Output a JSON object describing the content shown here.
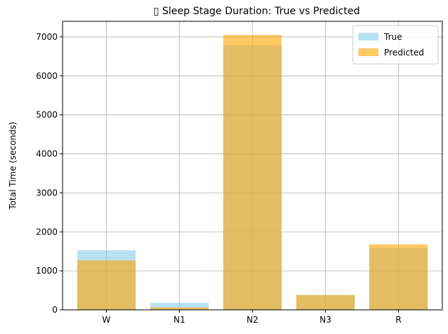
{
  "chart_data": {
    "type": "bar",
    "title": "▯ Sleep Stage Duration: True vs Predicted",
    "xlabel": "",
    "ylabel": "Total Time (seconds)",
    "categories": [
      "W",
      "N1",
      "N2",
      "N3",
      "R"
    ],
    "series": [
      {
        "name": "True",
        "values": [
          1530,
          180,
          6780,
          380,
          1590
        ],
        "color": "#87ceeb",
        "alpha": 0.6
      },
      {
        "name": "Predicted",
        "values": [
          1270,
          60,
          7050,
          380,
          1680
        ],
        "color": "#ffa500",
        "alpha": 0.6
      }
    ],
    "ylim": [
      0,
      7400
    ],
    "yticks": [
      0,
      1000,
      2000,
      3000,
      4000,
      5000,
      6000,
      7000
    ],
    "grid": true,
    "legend_position": "top-right"
  }
}
